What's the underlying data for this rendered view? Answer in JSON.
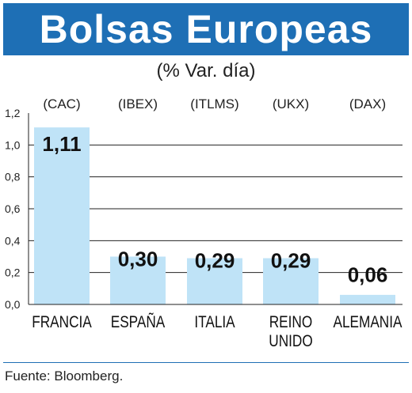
{
  "header": {
    "title": "Bolsas Europeas",
    "subtitle": "(% Var. día)"
  },
  "source": "Fuente: Bloomberg.",
  "colors": {
    "banner": "#1e6fb5",
    "bar": "#bfe3f7",
    "grid": "#222222"
  },
  "chart_data": {
    "type": "bar",
    "categories": [
      [
        "FRANCIA"
      ],
      [
        "ESPAÑA"
      ],
      [
        "ITALIA"
      ],
      [
        "REINO",
        "UNIDO"
      ],
      [
        "ALEMANIA"
      ]
    ],
    "index_codes": [
      "(CAC)",
      "(IBEX)",
      "(ITLMS)",
      "(UKX)",
      "(DAX)"
    ],
    "values": [
      1.11,
      0.3,
      0.29,
      0.29,
      0.06
    ],
    "value_labels": [
      "1,11",
      "0,30",
      "0,29",
      "0,29",
      "0,06"
    ],
    "yticks": [
      0.0,
      0.2,
      0.4,
      0.6,
      0.8,
      1.0,
      1.2
    ],
    "ytick_labels": [
      "0,0",
      "0,2",
      "0,4",
      "0,6",
      "0,8",
      "1,0",
      "1,2"
    ],
    "ylim": [
      0,
      1.2
    ],
    "grid": true,
    "legend": "none"
  }
}
